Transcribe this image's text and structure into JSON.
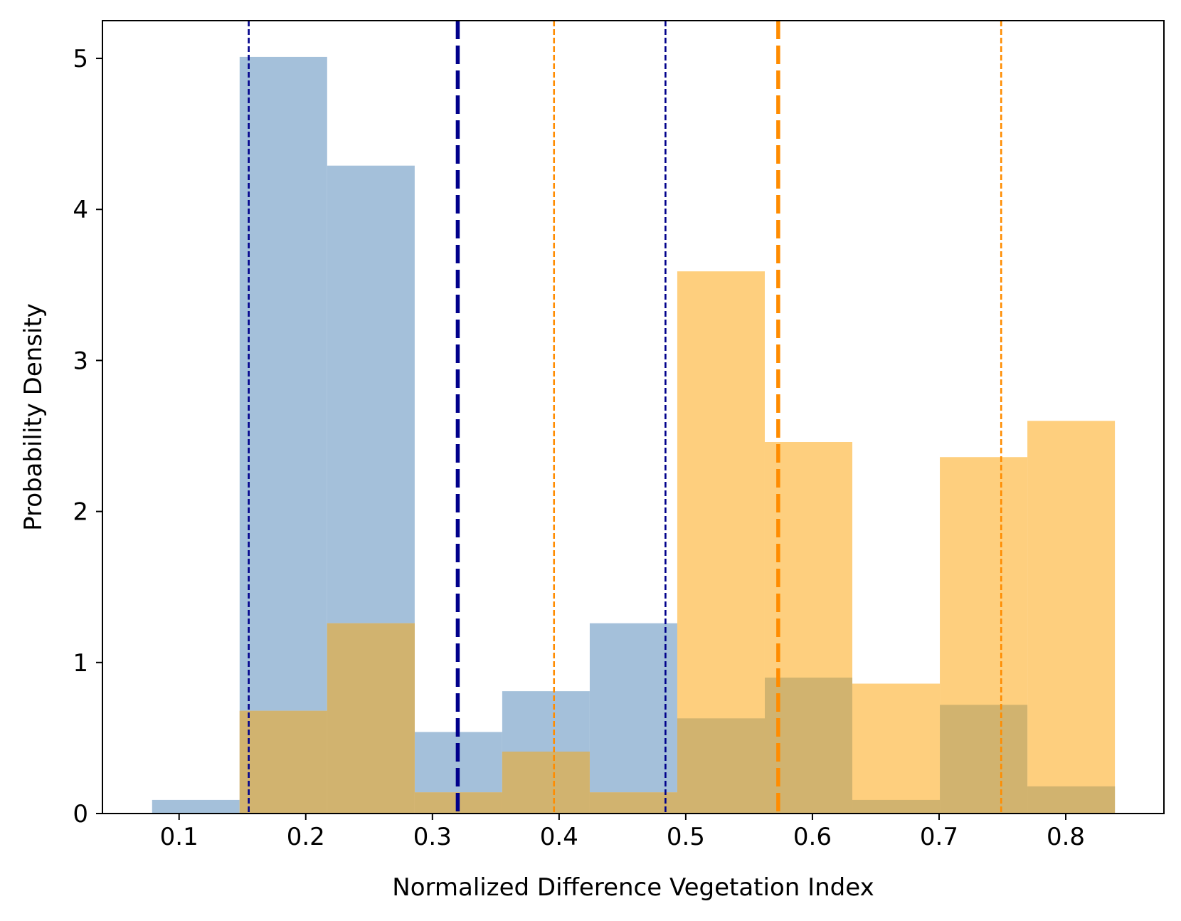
{
  "chart_data": {
    "type": "histogram",
    "title": "",
    "xlabel": "Normalized Difference Vegetation Index",
    "ylabel": "Probability Density",
    "xlim": [
      0.0395,
      0.8775
    ],
    "ylim": [
      0,
      5.25
    ],
    "xticks": [
      {
        "value": 0.1,
        "label": "0.1"
      },
      {
        "value": 0.2,
        "label": "0.2"
      },
      {
        "value": 0.3,
        "label": "0.3"
      },
      {
        "value": 0.4,
        "label": "0.4"
      },
      {
        "value": 0.5,
        "label": "0.5"
      },
      {
        "value": 0.6,
        "label": "0.6"
      },
      {
        "value": 0.7,
        "label": "0.7"
      },
      {
        "value": 0.8,
        "label": "0.8"
      }
    ],
    "yticks": [
      {
        "value": 0,
        "label": "0"
      },
      {
        "value": 1,
        "label": "1"
      },
      {
        "value": 2,
        "label": "2"
      },
      {
        "value": 3,
        "label": "3"
      },
      {
        "value": 4,
        "label": "4"
      },
      {
        "value": 5,
        "label": "5"
      }
    ],
    "grid": false,
    "series": [
      {
        "color": "#a4c0da",
        "bin_edges": [
          0.0787,
          0.1478,
          0.2169,
          0.286,
          0.3551,
          0.4242,
          0.4933,
          0.5624,
          0.6315,
          0.7006,
          0.7697,
          0.8388
        ],
        "density": [
          0.09,
          5.01,
          4.29,
          0.54,
          0.81,
          1.26,
          0.63,
          0.9,
          0.09,
          0.72,
          0.18
        ]
      },
      {
        "color": "#fecf7e",
        "bin_edges": [
          0.0787,
          0.1478,
          0.2169,
          0.286,
          0.3551,
          0.4242,
          0.4933,
          0.5624,
          0.6315,
          0.7006,
          0.7697,
          0.8388
        ],
        "density": [
          0,
          0.68,
          1.26,
          0.14,
          0.41,
          0.14,
          3.59,
          2.46,
          0.86,
          2.36,
          2.6
        ]
      }
    ],
    "overlap_color": "#d1b36f",
    "vlines": [
      {
        "x": 0.155,
        "color": "#00008b",
        "style": "dotted"
      },
      {
        "x": 0.32,
        "color": "#00008b",
        "style": "dashed-bold"
      },
      {
        "x": 0.484,
        "color": "#00008b",
        "style": "dotted"
      },
      {
        "x": 0.396,
        "color": "#ff8c00",
        "style": "dotted"
      },
      {
        "x": 0.573,
        "color": "#ff8c00",
        "style": "dashed-bold"
      },
      {
        "x": 0.749,
        "color": "#ff8c00",
        "style": "dotted"
      }
    ]
  }
}
